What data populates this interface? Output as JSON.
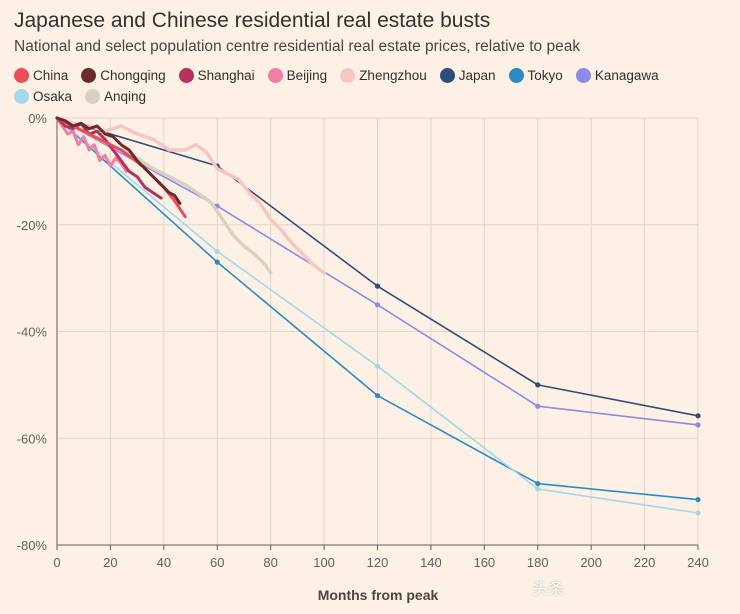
{
  "header": {
    "title": "Japanese and Chinese residential real estate busts",
    "subtitle": "National and select population centre residential real estate prices, relative to peak"
  },
  "watermark": "头条",
  "chart_data": {
    "type": "line",
    "xlabel": "Months from peak",
    "ylabel": "",
    "xlim": [
      0,
      240
    ],
    "ylim": [
      -80,
      0
    ],
    "x_ticks": [
      0,
      20,
      40,
      60,
      80,
      100,
      120,
      140,
      160,
      180,
      200,
      220,
      240
    ],
    "y_ticks": [
      0,
      -20,
      -40,
      -60,
      -80
    ],
    "y_tick_labels": [
      "0%",
      "-20%",
      "-40%",
      "-60%",
      "-80%"
    ],
    "grid": true,
    "legend_position": "top",
    "series": [
      {
        "name": "Japan",
        "color": "#2d4e79",
        "width": 1.6,
        "markers": true,
        "points": [
          [
            0,
            0
          ],
          [
            60,
            -9
          ],
          [
            120,
            -31.5
          ],
          [
            180,
            -50
          ],
          [
            240,
            -55.8
          ]
        ]
      },
      {
        "name": "Tokyo",
        "color": "#2c8bc3",
        "width": 1.6,
        "markers": true,
        "points": [
          [
            0,
            0
          ],
          [
            60,
            -27
          ],
          [
            120,
            -52
          ],
          [
            180,
            -68.5
          ],
          [
            240,
            -71.5
          ]
        ]
      },
      {
        "name": "Kanagawa",
        "color": "#8d8ae8",
        "width": 1.6,
        "markers": true,
        "points": [
          [
            0,
            0
          ],
          [
            60,
            -16.5
          ],
          [
            120,
            -35
          ],
          [
            180,
            -54
          ],
          [
            240,
            -57.5
          ]
        ]
      },
      {
        "name": "Osaka",
        "color": "#a3d8e8",
        "width": 1.6,
        "markers": true,
        "points": [
          [
            0,
            0
          ],
          [
            60,
            -25
          ],
          [
            120,
            -46.5
          ],
          [
            180,
            -69.5
          ],
          [
            240,
            -74
          ]
        ]
      },
      {
        "name": "Zhengzhou",
        "color": "#f7c6c2",
        "width": 3.5,
        "markers": false,
        "points": [
          [
            0,
            0
          ],
          [
            6,
            -1
          ],
          [
            12,
            -1.5
          ],
          [
            18,
            -2.5
          ],
          [
            24,
            -1.5
          ],
          [
            30,
            -3
          ],
          [
            36,
            -4
          ],
          [
            42,
            -6
          ],
          [
            48,
            -6
          ],
          [
            52,
            -5
          ],
          [
            56,
            -6.5
          ],
          [
            60,
            -9.5
          ],
          [
            64,
            -10.5
          ],
          [
            68,
            -11.5
          ],
          [
            72,
            -14
          ],
          [
            76,
            -16
          ],
          [
            80,
            -19
          ],
          [
            84,
            -21
          ],
          [
            88,
            -23.5
          ],
          [
            92,
            -25.5
          ],
          [
            96,
            -27.5
          ],
          [
            100,
            -29
          ]
        ]
      },
      {
        "name": "Anqing",
        "color": "#d8d0c0",
        "width": 3.5,
        "markers": false,
        "points": [
          [
            0,
            0
          ],
          [
            6,
            -1.5
          ],
          [
            12,
            -3
          ],
          [
            18,
            -4.5
          ],
          [
            24,
            -6
          ],
          [
            30,
            -7.5
          ],
          [
            36,
            -9.5
          ],
          [
            42,
            -11
          ],
          [
            48,
            -12.5
          ],
          [
            54,
            -14.5
          ],
          [
            58,
            -16
          ],
          [
            62,
            -19
          ],
          [
            66,
            -22
          ],
          [
            70,
            -24
          ],
          [
            74,
            -25.5
          ],
          [
            78,
            -27.5
          ],
          [
            80,
            -29
          ]
        ]
      },
      {
        "name": "Beijing",
        "color": "#f07fa5",
        "width": 3,
        "markers": false,
        "points": [
          [
            0,
            0
          ],
          [
            2,
            -1.5
          ],
          [
            4,
            -3
          ],
          [
            6,
            -2.5
          ],
          [
            8,
            -5
          ],
          [
            10,
            -3.5
          ],
          [
            12,
            -6
          ],
          [
            14,
            -5
          ],
          [
            16,
            -8
          ],
          [
            18,
            -7
          ],
          [
            20,
            -9
          ],
          [
            22,
            -7.5
          ],
          [
            24,
            -8.5
          ],
          [
            26,
            -10
          ]
        ]
      },
      {
        "name": "Shanghai",
        "color": "#b5325f",
        "width": 3,
        "markers": false,
        "points": [
          [
            0,
            0
          ],
          [
            3,
            -1.5
          ],
          [
            6,
            -2
          ],
          [
            9,
            -1
          ],
          [
            12,
            -3
          ],
          [
            15,
            -2.5
          ],
          [
            18,
            -4
          ],
          [
            21,
            -6
          ],
          [
            24,
            -8
          ],
          [
            27,
            -10
          ],
          [
            30,
            -11
          ],
          [
            33,
            -13
          ],
          [
            36,
            -14
          ],
          [
            39,
            -15
          ]
        ]
      },
      {
        "name": "China",
        "color": "#ea4e5d",
        "width": 3,
        "markers": false,
        "points": [
          [
            0,
            0
          ],
          [
            4,
            -1
          ],
          [
            8,
            -2
          ],
          [
            12,
            -3
          ],
          [
            16,
            -4
          ],
          [
            20,
            -5
          ],
          [
            24,
            -6
          ],
          [
            28,
            -7.5
          ],
          [
            32,
            -9
          ],
          [
            36,
            -11
          ],
          [
            40,
            -13
          ],
          [
            44,
            -15.5
          ],
          [
            48,
            -18.5
          ]
        ]
      },
      {
        "name": "Chongqing",
        "color": "#6b2a2e",
        "width": 3,
        "markers": false,
        "points": [
          [
            0,
            0
          ],
          [
            3,
            -0.5
          ],
          [
            6,
            -1.5
          ],
          [
            9,
            -1
          ],
          [
            12,
            -2
          ],
          [
            15,
            -1.5
          ],
          [
            18,
            -3
          ],
          [
            21,
            -3.5
          ],
          [
            24,
            -5
          ],
          [
            27,
            -6
          ],
          [
            30,
            -8
          ],
          [
            33,
            -9.5
          ],
          [
            36,
            -11
          ],
          [
            39,
            -12.5
          ],
          [
            42,
            -14
          ],
          [
            44,
            -14.5
          ],
          [
            46,
            -16
          ]
        ]
      }
    ],
    "legend_order": [
      "China",
      "Chongqing",
      "Shanghai",
      "Beijing",
      "Zhengzhou",
      "Japan",
      "Tokyo",
      "Kanagawa",
      "Osaka",
      "Anqing"
    ]
  }
}
